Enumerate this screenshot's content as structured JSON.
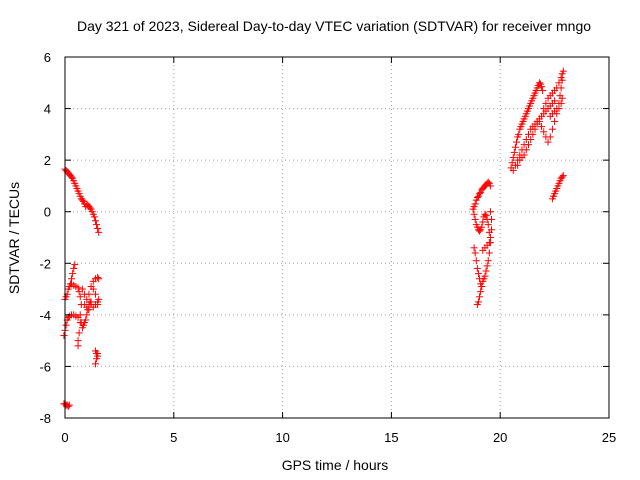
{
  "chart_data": {
    "type": "scatter",
    "title": "Day 321 of 2023, Sidereal Day-to-day VTEC variation (SDTVAR) for receiver mngo",
    "xlabel": "GPS time / hours",
    "ylabel": "SDTVAR / TECUs",
    "xlim": [
      0,
      25
    ],
    "ylim": [
      -8,
      6
    ],
    "xticks": [
      0,
      5,
      10,
      15,
      20,
      25
    ],
    "yticks": [
      -8,
      -6,
      -4,
      -2,
      0,
      2,
      4,
      6
    ],
    "xtick_labels": [
      "0",
      "5",
      "10",
      "15",
      "20",
      "25"
    ],
    "ytick_labels": [
      "-8",
      "-6",
      "-4",
      "-2",
      "0",
      "2",
      "4",
      "6"
    ],
    "grid": true,
    "marker": "plus",
    "color": "#ff0000",
    "series": [
      {
        "points": [
          [
            0.0,
            1.65
          ],
          [
            0.05,
            1.6
          ],
          [
            0.1,
            1.55
          ],
          [
            0.15,
            1.5
          ],
          [
            0.2,
            1.45
          ],
          [
            0.25,
            1.4
          ],
          [
            0.3,
            1.35
          ],
          [
            0.35,
            1.3
          ],
          [
            0.4,
            1.2
          ],
          [
            0.45,
            1.1
          ],
          [
            0.5,
            1.0
          ],
          [
            0.55,
            0.9
          ],
          [
            0.6,
            0.8
          ],
          [
            0.65,
            0.7
          ],
          [
            0.7,
            0.6
          ],
          [
            0.75,
            0.5
          ],
          [
            0.8,
            0.45
          ],
          [
            0.85,
            0.4
          ],
          [
            0.9,
            0.3
          ],
          [
            0.95,
            0.2
          ],
          [
            1.0,
            0.3
          ],
          [
            1.05,
            0.25
          ],
          [
            1.1,
            0.2
          ],
          [
            1.15,
            0.15
          ],
          [
            1.2,
            0.1
          ],
          [
            1.25,
            0.0
          ],
          [
            1.3,
            -0.1
          ],
          [
            1.35,
            -0.2
          ],
          [
            1.4,
            -0.35
          ],
          [
            1.45,
            -0.5
          ],
          [
            1.5,
            -0.65
          ],
          [
            1.55,
            -0.8
          ],
          [
            -0.05,
            -4.8
          ],
          [
            0.0,
            -4.6
          ],
          [
            0.05,
            -4.4
          ],
          [
            0.1,
            -4.2
          ],
          [
            0.15,
            -4.1
          ],
          [
            0.2,
            -4.05
          ],
          [
            0.3,
            -4.0
          ],
          [
            0.4,
            -4.0
          ],
          [
            0.5,
            -4.05
          ],
          [
            0.6,
            -4.1
          ],
          [
            0.7,
            -4.0
          ],
          [
            0.75,
            -4.3
          ],
          [
            0.8,
            -4.5
          ],
          [
            0.85,
            -4.4
          ],
          [
            0.9,
            -4.3
          ],
          [
            0.95,
            -4.2
          ],
          [
            1.0,
            -4.0
          ],
          [
            1.05,
            -3.8
          ],
          [
            1.1,
            -3.6
          ],
          [
            1.15,
            -3.5
          ],
          [
            1.2,
            -3.6
          ],
          [
            1.3,
            -3.7
          ],
          [
            1.4,
            -3.6
          ],
          [
            1.5,
            -3.5
          ],
          [
            1.55,
            -3.4
          ],
          [
            0.0,
            -3.4
          ],
          [
            0.05,
            -3.3
          ],
          [
            0.1,
            -3.2
          ],
          [
            0.15,
            -3.0
          ],
          [
            0.2,
            -2.9
          ],
          [
            0.25,
            -2.8
          ],
          [
            0.3,
            -2.6
          ],
          [
            0.35,
            -2.4
          ],
          [
            0.4,
            -2.2
          ],
          [
            0.45,
            -2.05
          ],
          [
            0.3,
            -2.8
          ],
          [
            0.4,
            -2.85
          ],
          [
            0.5,
            -2.9
          ],
          [
            0.6,
            -2.95
          ],
          [
            0.65,
            -3.1
          ],
          [
            0.7,
            -3.3
          ],
          [
            0.75,
            -3.6
          ],
          [
            0.7,
            -4.3
          ],
          [
            0.65,
            -4.7
          ],
          [
            0.6,
            -5.0
          ],
          [
            0.6,
            -5.2
          ],
          [
            0.8,
            -3.0
          ],
          [
            0.9,
            -3.2
          ],
          [
            1.0,
            -3.4
          ],
          [
            1.1,
            -3.2
          ],
          [
            1.2,
            -2.9
          ],
          [
            1.3,
            -2.7
          ],
          [
            1.4,
            -2.6
          ],
          [
            1.5,
            -2.55
          ],
          [
            1.55,
            -2.6
          ],
          [
            0.9,
            -3.6
          ],
          [
            1.0,
            -3.7
          ],
          [
            1.1,
            -3.8
          ],
          [
            1.2,
            -3.5
          ],
          [
            1.3,
            -3.0
          ],
          [
            1.4,
            -3.2
          ],
          [
            1.5,
            -3.6
          ],
          [
            1.4,
            -5.4
          ],
          [
            1.45,
            -5.5
          ],
          [
            1.5,
            -5.5
          ],
          [
            1.5,
            -5.6
          ],
          [
            1.45,
            -5.7
          ],
          [
            1.4,
            -5.9
          ],
          [
            -0.05,
            -7.45
          ],
          [
            0.0,
            -7.45
          ],
          [
            0.05,
            -7.5
          ],
          [
            0.1,
            -7.5
          ],
          [
            0.15,
            -7.55
          ],
          [
            0.2,
            -7.5
          ],
          [
            18.8,
            0.2
          ],
          [
            18.85,
            0.3
          ],
          [
            18.9,
            0.45
          ],
          [
            18.95,
            0.55
          ],
          [
            19.0,
            0.6
          ],
          [
            19.05,
            0.7
          ],
          [
            19.1,
            0.75
          ],
          [
            19.15,
            0.85
          ],
          [
            19.2,
            0.9
          ],
          [
            19.25,
            0.95
          ],
          [
            19.3,
            1.0
          ],
          [
            19.35,
            1.05
          ],
          [
            19.4,
            1.1
          ],
          [
            19.45,
            1.15
          ],
          [
            19.5,
            1.1
          ],
          [
            19.55,
            1.0
          ],
          [
            18.75,
            0.1
          ],
          [
            18.8,
            -0.1
          ],
          [
            18.85,
            -0.3
          ],
          [
            18.9,
            -0.5
          ],
          [
            18.95,
            -0.6
          ],
          [
            19.0,
            -0.7
          ],
          [
            19.05,
            -0.75
          ],
          [
            19.1,
            -0.7
          ],
          [
            19.15,
            -0.6
          ],
          [
            19.2,
            -0.4
          ],
          [
            19.25,
            -0.2
          ],
          [
            19.3,
            -0.1
          ],
          [
            19.35,
            -0.15
          ],
          [
            19.4,
            -0.3
          ],
          [
            19.45,
            -0.5
          ],
          [
            19.5,
            -0.8
          ],
          [
            19.55,
            -1.2
          ],
          [
            19.5,
            -1.6
          ],
          [
            19.45,
            -1.9
          ],
          [
            19.4,
            -2.1
          ],
          [
            19.35,
            -2.3
          ],
          [
            19.3,
            -2.5
          ],
          [
            19.25,
            -2.6
          ],
          [
            19.2,
            -2.7
          ],
          [
            19.15,
            -2.9
          ],
          [
            19.1,
            -3.1
          ],
          [
            19.05,
            -3.3
          ],
          [
            19.0,
            -3.5
          ],
          [
            18.95,
            -3.6
          ],
          [
            18.8,
            -1.4
          ],
          [
            18.85,
            -1.6
          ],
          [
            18.9,
            -1.9
          ],
          [
            18.95,
            -2.2
          ],
          [
            19.0,
            -2.4
          ],
          [
            19.05,
            -2.6
          ],
          [
            19.1,
            -2.8
          ],
          [
            19.15,
            -2.9
          ],
          [
            19.2,
            -1.5
          ],
          [
            19.3,
            -1.4
          ],
          [
            19.4,
            -1.3
          ],
          [
            19.5,
            -1.2
          ],
          [
            19.55,
            -1.0
          ],
          [
            19.6,
            -0.7
          ],
          [
            19.6,
            -0.3
          ],
          [
            19.55,
            0.0
          ],
          [
            20.5,
            1.7
          ],
          [
            20.55,
            1.9
          ],
          [
            20.6,
            2.1
          ],
          [
            20.65,
            2.3
          ],
          [
            20.7,
            2.5
          ],
          [
            20.75,
            2.7
          ],
          [
            20.8,
            2.9
          ],
          [
            20.85,
            3.0
          ],
          [
            20.9,
            3.2
          ],
          [
            20.95,
            3.3
          ],
          [
            21.0,
            3.4
          ],
          [
            21.05,
            3.5
          ],
          [
            21.1,
            3.6
          ],
          [
            21.15,
            3.7
          ],
          [
            21.2,
            3.8
          ],
          [
            21.25,
            3.9
          ],
          [
            21.3,
            4.0
          ],
          [
            21.35,
            4.1
          ],
          [
            21.4,
            4.2
          ],
          [
            21.45,
            4.3
          ],
          [
            21.5,
            4.4
          ],
          [
            21.55,
            4.5
          ],
          [
            21.6,
            4.6
          ],
          [
            21.65,
            4.7
          ],
          [
            21.7,
            4.8
          ],
          [
            21.75,
            4.9
          ],
          [
            21.8,
            5.0
          ],
          [
            21.85,
            4.95
          ],
          [
            21.9,
            4.85
          ],
          [
            21.95,
            4.7
          ],
          [
            20.6,
            1.6
          ],
          [
            20.7,
            1.8
          ],
          [
            20.8,
            2.0
          ],
          [
            20.9,
            2.2
          ],
          [
            21.0,
            2.4
          ],
          [
            21.1,
            2.6
          ],
          [
            21.2,
            2.8
          ],
          [
            21.3,
            3.0
          ],
          [
            21.4,
            3.2
          ],
          [
            21.5,
            3.3
          ],
          [
            21.6,
            3.4
          ],
          [
            21.7,
            3.5
          ],
          [
            21.8,
            3.6
          ],
          [
            21.9,
            3.7
          ],
          [
            22.0,
            3.8
          ],
          [
            22.1,
            3.9
          ],
          [
            22.2,
            4.0
          ],
          [
            22.3,
            4.1
          ],
          [
            22.4,
            4.2
          ],
          [
            22.5,
            4.3
          ],
          [
            20.8,
            1.8
          ],
          [
            20.9,
            2.0
          ],
          [
            21.0,
            2.1
          ],
          [
            21.1,
            2.2
          ],
          [
            21.2,
            2.4
          ],
          [
            21.3,
            2.6
          ],
          [
            21.4,
            2.8
          ],
          [
            21.5,
            3.0
          ],
          [
            21.6,
            3.2
          ],
          [
            21.7,
            3.4
          ],
          [
            21.8,
            3.5
          ],
          [
            21.9,
            3.3
          ],
          [
            22.0,
            3.1
          ],
          [
            22.1,
            2.9
          ],
          [
            22.2,
            2.7
          ],
          [
            22.3,
            2.9
          ],
          [
            22.4,
            3.2
          ],
          [
            22.5,
            3.5
          ],
          [
            22.6,
            3.8
          ],
          [
            22.7,
            4.0
          ],
          [
            22.8,
            4.2
          ],
          [
            22.85,
            4.4
          ],
          [
            22.0,
            4.0
          ],
          [
            22.1,
            4.2
          ],
          [
            22.2,
            4.4
          ],
          [
            22.3,
            4.5
          ],
          [
            22.4,
            4.6
          ],
          [
            22.5,
            4.7
          ],
          [
            22.6,
            4.8
          ],
          [
            22.7,
            5.0
          ],
          [
            22.8,
            5.2
          ],
          [
            22.85,
            5.35
          ],
          [
            22.9,
            5.45
          ],
          [
            22.85,
            5.1
          ],
          [
            22.8,
            4.8
          ],
          [
            22.75,
            4.5
          ],
          [
            22.7,
            4.2
          ],
          [
            22.6,
            4.0
          ],
          [
            22.5,
            3.9
          ],
          [
            22.4,
            3.8
          ],
          [
            22.3,
            3.7
          ],
          [
            22.4,
            0.5
          ],
          [
            22.45,
            0.6
          ],
          [
            22.5,
            0.7
          ],
          [
            22.55,
            0.8
          ],
          [
            22.6,
            0.9
          ],
          [
            22.65,
            1.0
          ],
          [
            22.7,
            1.1
          ],
          [
            22.75,
            1.2
          ],
          [
            22.8,
            1.3
          ],
          [
            22.85,
            1.35
          ],
          [
            22.9,
            1.4
          ]
        ]
      }
    ]
  }
}
